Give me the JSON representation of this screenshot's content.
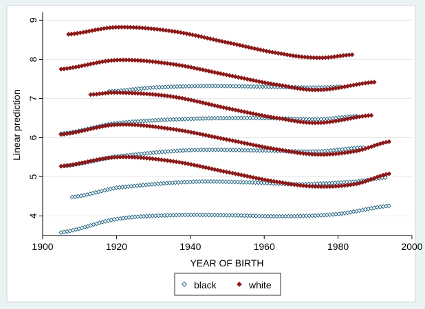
{
  "chart_data": {
    "type": "scatter",
    "xlabel": "YEAR OF BIRTH",
    "ylabel": "Linear prediction",
    "xlim": [
      1900,
      2000
    ],
    "ylim": [
      3.5,
      9.2
    ],
    "xticks": [
      "1900",
      "1920",
      "1940",
      "1960",
      "1980",
      "2000"
    ],
    "yticks": [
      "4",
      "5",
      "6",
      "7",
      "8",
      "9"
    ],
    "grid": true,
    "legend": {
      "position": "bottom-center"
    },
    "series": [
      {
        "name": "black",
        "marker": "hollow-diamond",
        "color": "#1a5d7a",
        "curves": [
          {
            "x_start": 1905,
            "x_end": 1994,
            "step": 0.8,
            "x": [
              1905,
              1920,
              1935,
              1950,
              1965,
              1980,
              1994
            ],
            "y": [
              3.58,
              3.92,
              4.02,
              4.02,
              3.99,
              4.05,
              4.26
            ]
          },
          {
            "x_start": 1908,
            "x_end": 1993,
            "step": 0.8,
            "x": [
              1908,
              1920,
              1940,
              1955,
              1970,
              1985,
              1993
            ],
            "y": [
              4.48,
              4.72,
              4.87,
              4.86,
              4.81,
              4.88,
              4.98
            ]
          },
          {
            "x_start": 1906,
            "x_end": 1987,
            "step": 0.8,
            "x": [
              1906,
              1920,
              1940,
              1960,
              1975,
              1987
            ],
            "y": [
              5.28,
              5.52,
              5.68,
              5.67,
              5.65,
              5.75
            ]
          },
          {
            "x_start": 1905,
            "x_end": 1985,
            "step": 0.8,
            "x": [
              1905,
              1920,
              1940,
              1960,
              1975,
              1985
            ],
            "y": [
              6.1,
              6.37,
              6.48,
              6.5,
              6.47,
              6.55
            ]
          },
          {
            "x_start": 1918,
            "x_end": 1981,
            "step": 0.8,
            "x": [
              1918,
              1930,
              1945,
              1960,
              1975,
              1981
            ],
            "y": [
              7.18,
              7.28,
              7.32,
              7.3,
              7.28,
              7.3
            ]
          }
        ]
      },
      {
        "name": "white",
        "marker": "filled-diamond",
        "color": "#8b1a1a",
        "curves": [
          {
            "x_start": 1905,
            "x_end": 1994,
            "step": 0.8,
            "x": [
              1905,
              1920,
              1935,
              1950,
              1965,
              1975,
              1985,
              1994
            ],
            "y": [
              5.27,
              5.5,
              5.4,
              5.12,
              4.85,
              4.75,
              4.82,
              5.08
            ]
          },
          {
            "x_start": 1905,
            "x_end": 1994,
            "step": 0.8,
            "x": [
              1905,
              1920,
              1935,
              1950,
              1965,
              1975,
              1985,
              1994
            ],
            "y": [
              6.08,
              6.33,
              6.22,
              5.95,
              5.68,
              5.57,
              5.66,
              5.9
            ]
          },
          {
            "x_start": 1913,
            "x_end": 1989,
            "step": 0.8,
            "x": [
              1913,
              1920,
              1935,
              1950,
              1965,
              1975,
              1989
            ],
            "y": [
              7.1,
              7.15,
              7.05,
              6.75,
              6.48,
              6.38,
              6.57
            ]
          },
          {
            "x_start": 1905,
            "x_end": 1990,
            "step": 0.8,
            "x": [
              1905,
              1920,
              1935,
              1950,
              1965,
              1975,
              1990
            ],
            "y": [
              7.75,
              7.98,
              7.88,
              7.6,
              7.33,
              7.22,
              7.42
            ]
          },
          {
            "x_start": 1907,
            "x_end": 1984,
            "step": 0.8,
            "x": [
              1907,
              1920,
              1935,
              1950,
              1965,
              1975,
              1984
            ],
            "y": [
              8.64,
              8.82,
              8.72,
              8.43,
              8.14,
              8.04,
              8.12
            ]
          }
        ]
      }
    ]
  }
}
